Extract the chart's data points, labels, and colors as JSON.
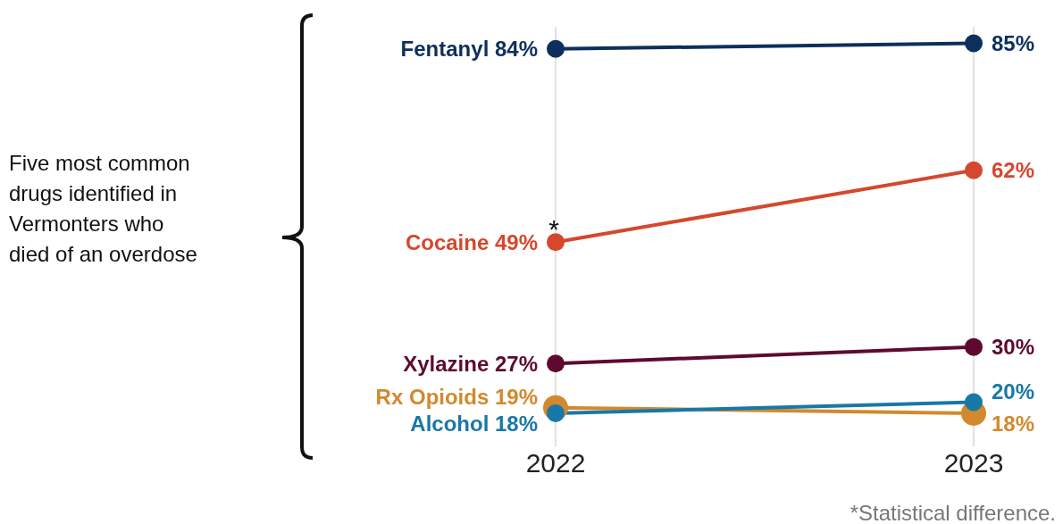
{
  "chart_data": {
    "type": "line",
    "categories": [
      "2022",
      "2023"
    ],
    "series": [
      {
        "name": "Fentanyl",
        "color": "#0d2f5e",
        "values": [
          84,
          85
        ],
        "value_labels": [
          "84%",
          "85%"
        ]
      },
      {
        "name": "Cocaine",
        "color": "#d4482e",
        "values": [
          49,
          62
        ],
        "value_labels": [
          "49%",
          "62%"
        ]
      },
      {
        "name": "Xylazine",
        "color": "#5e0a30",
        "values": [
          27,
          30
        ],
        "value_labels": [
          "27%",
          "30%"
        ]
      },
      {
        "name": "Rx Opioids",
        "color": "#d3892e",
        "values": [
          19,
          18
        ],
        "value_labels": [
          "19%",
          "18%"
        ]
      },
      {
        "name": "Alcohol",
        "color": "#1878a8",
        "values": [
          18,
          20
        ],
        "value_labels": [
          "18%",
          "20%"
        ]
      }
    ],
    "ylim": [
      12,
      88
    ],
    "grid": "x",
    "tick_labels": "x",
    "marker": "circle",
    "annotations": [
      "Five most common drugs identified in Vermonters who died of an overdose",
      {
        "text": "*",
        "x": "2022",
        "y": 49
      },
      "*Statistical difference."
    ]
  }
}
